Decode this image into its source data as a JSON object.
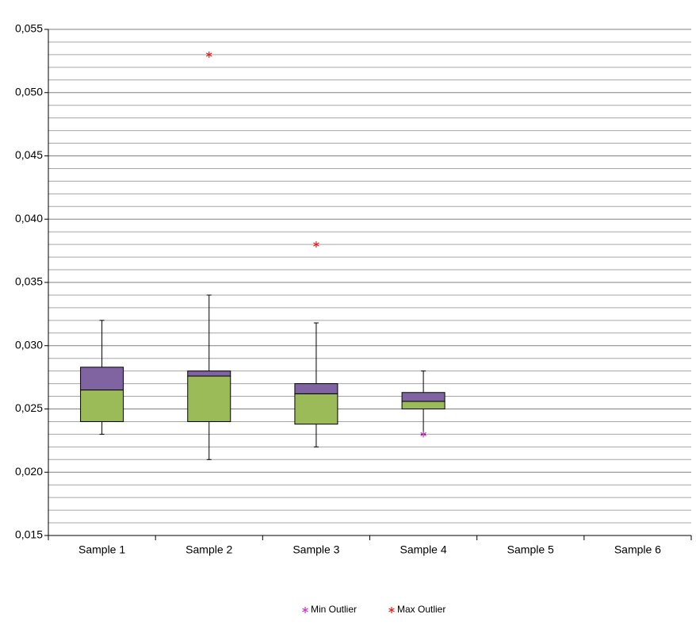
{
  "chart_data": {
    "type": "box",
    "categories": [
      "Sample 1",
      "Sample 2",
      "Sample 3",
      "Sample 4",
      "Sample 5",
      "Sample 6"
    ],
    "min": [
      0.023,
      0.021,
      0.022,
      0.023,
      null,
      null
    ],
    "q1": [
      0.024,
      0.024,
      0.0238,
      0.025,
      null,
      null
    ],
    "median": [
      0.0265,
      0.0276,
      0.0262,
      0.0256,
      null,
      null
    ],
    "q3": [
      0.0283,
      0.028,
      0.027,
      0.0263,
      null,
      null
    ],
    "max": [
      0.032,
      0.034,
      0.0318,
      0.028,
      null,
      null
    ],
    "lower_color": "#9bbb59",
    "upper_color": "#8064a2",
    "series": [
      {
        "name": "Min Outlier",
        "color": "#cc33cc",
        "values": [
          null,
          null,
          null,
          0.023,
          null,
          null
        ]
      },
      {
        "name": "Max Outlier",
        "color": "#e02020",
        "values": [
          null,
          0.053,
          0.038,
          null,
          null,
          null
        ]
      }
    ],
    "ylim": [
      0.015,
      0.055
    ],
    "yticks": [
      {
        "value": 0.015,
        "label": "0,015"
      },
      {
        "value": 0.02,
        "label": "0,020"
      },
      {
        "value": 0.025,
        "label": "0,025"
      },
      {
        "value": 0.03,
        "label": "0,030"
      },
      {
        "value": 0.035,
        "label": "0,035"
      },
      {
        "value": 0.04,
        "label": "0,040"
      },
      {
        "value": 0.045,
        "label": "0,045"
      },
      {
        "value": 0.05,
        "label": "0,050"
      },
      {
        "value": 0.055,
        "label": "0,055"
      }
    ],
    "minor_yticks": [
      0.016,
      0.017,
      0.018,
      0.019,
      0.021,
      0.022,
      0.023,
      0.024,
      0.026,
      0.027,
      0.028,
      0.029,
      0.031,
      0.032,
      0.033,
      0.034,
      0.036,
      0.037,
      0.038,
      0.039,
      0.041,
      0.042,
      0.043,
      0.044,
      0.046,
      0.047,
      0.048,
      0.049,
      0.051,
      0.052,
      0.053,
      0.054
    ],
    "grid": true,
    "legend": "bottom"
  }
}
